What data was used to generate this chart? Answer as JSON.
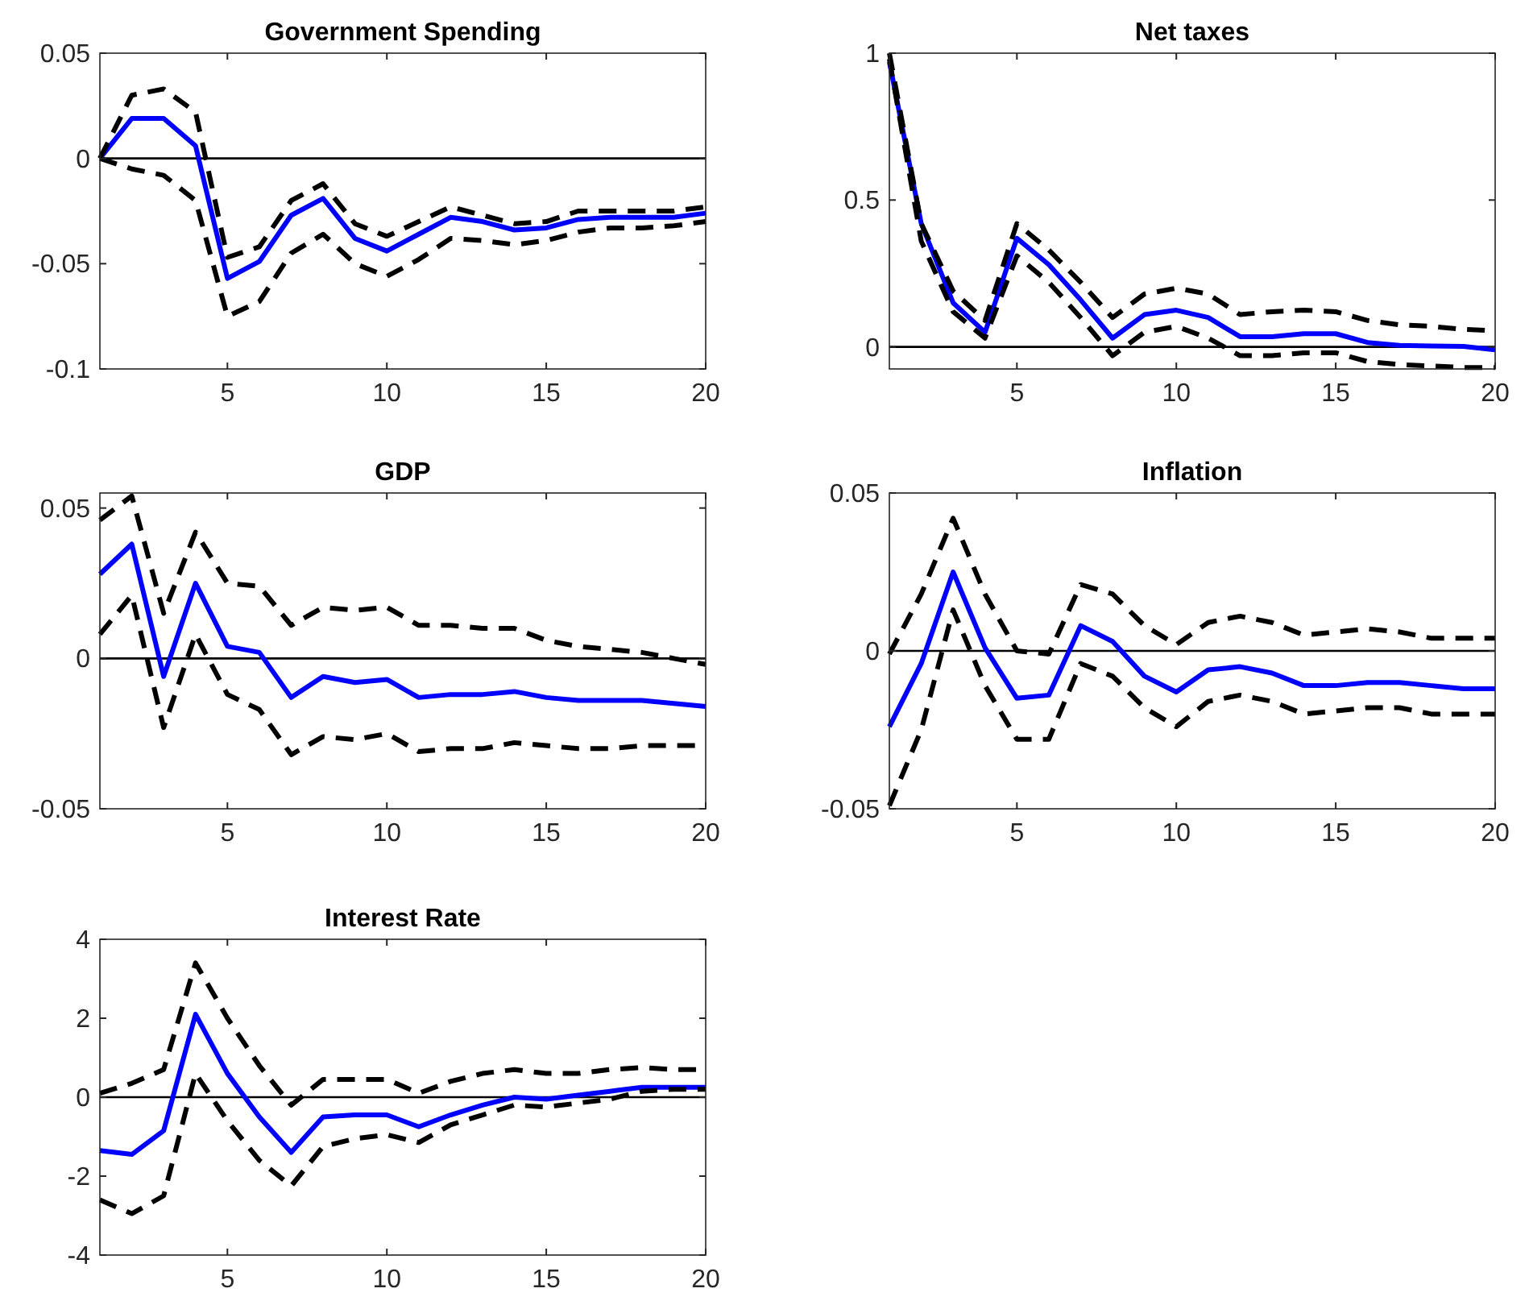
{
  "chart_data": [
    {
      "type": "line",
      "title": "Government Spending",
      "x": [
        1,
        2,
        3,
        4,
        5,
        6,
        7,
        8,
        9,
        10,
        11,
        12,
        13,
        14,
        15,
        16,
        17,
        18,
        19,
        20
      ],
      "xlim": [
        1,
        20
      ],
      "xticks": [
        5,
        10,
        15,
        20
      ],
      "ylim": [
        -0.1,
        0.05
      ],
      "yticks": [
        -0.1,
        -0.05,
        0,
        0.05
      ],
      "ref_lines": [
        {
          "axis": "y",
          "value": 0,
          "color": "#000000"
        }
      ],
      "series": [
        {
          "color": "#0000ff",
          "line_style": "solid",
          "values": [
            0,
            0.019,
            0.019,
            0.006,
            -0.057,
            -0.049,
            -0.027,
            -0.019,
            -0.038,
            -0.044,
            -0.036,
            -0.028,
            -0.03,
            -0.034,
            -0.033,
            -0.029,
            -0.028,
            -0.028,
            -0.028,
            -0.026
          ]
        },
        {
          "color": "#000000",
          "line_style": "dashed",
          "values": [
            0,
            0.03,
            0.033,
            0.022,
            -0.047,
            -0.042,
            -0.02,
            -0.012,
            -0.031,
            -0.037,
            -0.03,
            -0.023,
            -0.027,
            -0.031,
            -0.03,
            -0.025,
            -0.025,
            -0.025,
            -0.025,
            -0.023
          ]
        },
        {
          "color": "#000000",
          "line_style": "dashed",
          "values": [
            0,
            -0.005,
            -0.008,
            -0.02,
            -0.075,
            -0.068,
            -0.045,
            -0.036,
            -0.05,
            -0.056,
            -0.048,
            -0.038,
            -0.039,
            -0.041,
            -0.039,
            -0.035,
            -0.033,
            -0.033,
            -0.032,
            -0.03
          ]
        }
      ]
    },
    {
      "type": "line",
      "title": "Net taxes",
      "x": [
        1,
        2,
        3,
        4,
        5,
        6,
        7,
        8,
        9,
        10,
        11,
        12,
        13,
        14,
        15,
        16,
        17,
        18,
        19,
        20
      ],
      "xlim": [
        1,
        20
      ],
      "xticks": [
        5,
        10,
        15,
        20
      ],
      "ylim": [
        -0.075,
        1
      ],
      "yticks": [
        0,
        0.5,
        1
      ],
      "ref_lines": [
        {
          "axis": "y",
          "value": 0,
          "color": "#000000"
        }
      ],
      "series": [
        {
          "color": "#0000ff",
          "line_style": "solid",
          "values": [
            0.97,
            0.42,
            0.15,
            0.05,
            0.37,
            0.28,
            0.16,
            0.03,
            0.11,
            0.125,
            0.1,
            0.035,
            0.035,
            0.045,
            0.045,
            0.015,
            0.005,
            0.003,
            0.002,
            -0.01
          ]
        },
        {
          "color": "#000000",
          "line_style": "dashed",
          "values": [
            1.0,
            0.42,
            0.19,
            0.09,
            0.42,
            0.33,
            0.22,
            0.1,
            0.18,
            0.2,
            0.18,
            0.11,
            0.12,
            0.125,
            0.12,
            0.09,
            0.075,
            0.07,
            0.06,
            0.055
          ]
        },
        {
          "color": "#000000",
          "line_style": "dashed",
          "values": [
            0.98,
            0.36,
            0.12,
            0.03,
            0.31,
            0.22,
            0.1,
            -0.03,
            0.05,
            0.07,
            0.03,
            -0.03,
            -0.03,
            -0.02,
            -0.02,
            -0.05,
            -0.06,
            -0.065,
            -0.07,
            -0.07
          ]
        }
      ]
    },
    {
      "type": "line",
      "title": "GDP",
      "x": [
        1,
        2,
        3,
        4,
        5,
        6,
        7,
        8,
        9,
        10,
        11,
        12,
        13,
        14,
        15,
        16,
        17,
        18,
        19,
        20
      ],
      "xlim": [
        1,
        20
      ],
      "xticks": [
        5,
        10,
        15,
        20
      ],
      "ylim": [
        -0.05,
        0.055
      ],
      "yticks": [
        -0.05,
        0,
        0.05
      ],
      "ref_lines": [
        {
          "axis": "y",
          "value": 0,
          "color": "#000000"
        }
      ],
      "series": [
        {
          "color": "#0000ff",
          "line_style": "solid",
          "values": [
            0.028,
            0.038,
            -0.006,
            0.025,
            0.004,
            0.002,
            -0.013,
            -0.006,
            -0.008,
            -0.007,
            -0.013,
            -0.012,
            -0.012,
            -0.011,
            -0.013,
            -0.014,
            -0.014,
            -0.014,
            -0.015,
            -0.016
          ]
        },
        {
          "color": "#000000",
          "line_style": "dashed",
          "values": [
            0.046,
            0.054,
            0.015,
            0.042,
            0.025,
            0.024,
            0.011,
            0.017,
            0.016,
            0.017,
            0.011,
            0.011,
            0.01,
            0.01,
            0.006,
            0.004,
            0.003,
            0.002,
            0.0,
            -0.002
          ]
        },
        {
          "color": "#000000",
          "line_style": "dashed",
          "values": [
            0.008,
            0.021,
            -0.023,
            0.008,
            -0.012,
            -0.017,
            -0.032,
            -0.026,
            -0.027,
            -0.025,
            -0.031,
            -0.03,
            -0.03,
            -0.028,
            -0.029,
            -0.03,
            -0.03,
            -0.029,
            -0.029,
            -0.029
          ]
        }
      ]
    },
    {
      "type": "line",
      "title": "Inflation",
      "x": [
        1,
        2,
        3,
        4,
        5,
        6,
        7,
        8,
        9,
        10,
        11,
        12,
        13,
        14,
        15,
        16,
        17,
        18,
        19,
        20
      ],
      "xlim": [
        1,
        20
      ],
      "xticks": [
        5,
        10,
        15,
        20
      ],
      "ylim": [
        -0.05,
        0.05
      ],
      "yticks": [
        -0.05,
        0,
        0.05
      ],
      "ref_lines": [
        {
          "axis": "y",
          "value": 0,
          "color": "#000000"
        }
      ],
      "series": [
        {
          "color": "#0000ff",
          "line_style": "solid",
          "values": [
            -0.024,
            -0.004,
            0.025,
            0.001,
            -0.015,
            -0.014,
            0.008,
            0.003,
            -0.008,
            -0.013,
            -0.006,
            -0.005,
            -0.007,
            -0.011,
            -0.011,
            -0.01,
            -0.01,
            -0.011,
            -0.012,
            -0.012
          ]
        },
        {
          "color": "#000000",
          "line_style": "dashed",
          "values": [
            -0.001,
            0.018,
            0.042,
            0.018,
            0.0,
            -0.001,
            0.021,
            0.018,
            0.008,
            0.002,
            0.009,
            0.011,
            0.009,
            0.005,
            0.006,
            0.007,
            0.006,
            0.004,
            0.004,
            0.004
          ]
        },
        {
          "color": "#000000",
          "line_style": "dashed",
          "values": [
            -0.049,
            -0.025,
            0.013,
            -0.011,
            -0.028,
            -0.028,
            -0.004,
            -0.008,
            -0.018,
            -0.024,
            -0.016,
            -0.014,
            -0.016,
            -0.02,
            -0.019,
            -0.018,
            -0.018,
            -0.02,
            -0.02,
            -0.02
          ]
        }
      ]
    },
    {
      "type": "line",
      "title": "Interest Rate",
      "x": [
        1,
        2,
        3,
        4,
        5,
        6,
        7,
        8,
        9,
        10,
        11,
        12,
        13,
        14,
        15,
        16,
        17,
        18,
        19,
        20
      ],
      "xlim": [
        1,
        20
      ],
      "xticks": [
        5,
        10,
        15,
        20
      ],
      "ylim": [
        -4,
        4
      ],
      "yticks": [
        -4,
        -2,
        0,
        2,
        4
      ],
      "ref_lines": [
        {
          "axis": "y",
          "value": 0,
          "color": "#000000"
        }
      ],
      "series": [
        {
          "color": "#0000ff",
          "line_style": "solid",
          "values": [
            -1.35,
            -1.45,
            -0.85,
            2.1,
            0.6,
            -0.5,
            -1.4,
            -0.5,
            -0.45,
            -0.45,
            -0.75,
            -0.45,
            -0.2,
            0.0,
            -0.05,
            0.05,
            0.15,
            0.25,
            0.25,
            0.25
          ]
        },
        {
          "color": "#000000",
          "line_style": "dashed",
          "values": [
            0.1,
            0.35,
            0.7,
            3.4,
            2.0,
            0.8,
            -0.2,
            0.45,
            0.45,
            0.45,
            0.1,
            0.4,
            0.6,
            0.7,
            0.6,
            0.6,
            0.7,
            0.75,
            0.7,
            0.7
          ]
        },
        {
          "color": "#000000",
          "line_style": "dashed",
          "values": [
            -2.6,
            -2.95,
            -2.5,
            0.6,
            -0.6,
            -1.6,
            -2.25,
            -1.25,
            -1.05,
            -0.95,
            -1.15,
            -0.7,
            -0.45,
            -0.2,
            -0.25,
            -0.15,
            -0.05,
            0.15,
            0.2,
            0.2
          ]
        }
      ]
    }
  ]
}
